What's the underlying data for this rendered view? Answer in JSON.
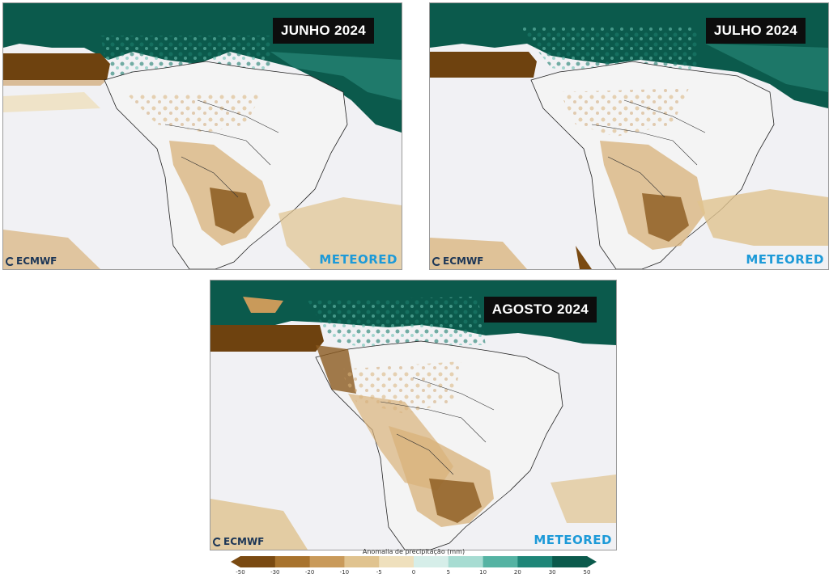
{
  "panels": [
    {
      "id": "jun",
      "label": "JUNHO 2024"
    },
    {
      "id": "jul",
      "label": "JULHO 2024"
    },
    {
      "id": "ago",
      "label": "AGOSTO 2024"
    }
  ],
  "logos": {
    "ecmwf": "ECMWF",
    "meteored": "METEORED"
  },
  "colorbar": {
    "title": "Anomalia de precipitação (mm)",
    "ticks": [
      "-50",
      "-30",
      "-20",
      "-10",
      "-5",
      "0",
      "5",
      "10",
      "20",
      "30",
      "50"
    ],
    "colors": [
      "#7a4a12",
      "#a8732e",
      "#c99a5a",
      "#e0c38f",
      "#efe0bd",
      "#f4f4f4",
      "#d6eee9",
      "#a7dcd2",
      "#55b3a3",
      "#1f8678",
      "#0b5a4c"
    ]
  }
}
